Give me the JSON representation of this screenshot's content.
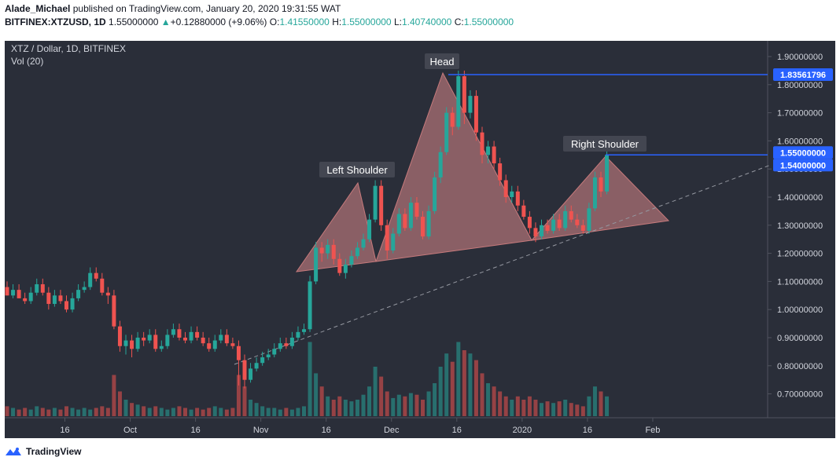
{
  "header": {
    "user": "Alade_Michael",
    "published": "published on TradingView.com, January 20, 2020 19:31:55 WAT",
    "symbol": "BITFINEX:XTZUSD, 1D",
    "close_value": "1.55000000",
    "change_value": "+0.12880000 (+9.06%)",
    "o_label": "O:",
    "o_value": "1.41550000",
    "h_label": "H:",
    "h_value": "1.55000000",
    "l_label": "L:",
    "l_value": "1.40740000",
    "c_label": "C:",
    "c_value": "1.55000000"
  },
  "legend": {
    "pair": "XTZ / Dollar, 1D, BITFINEX",
    "volume": "Vol (20)"
  },
  "footer": {
    "brand": "TradingView"
  },
  "colors": {
    "background": "#2a2e39",
    "up": "#26a69a",
    "down": "#ef5350",
    "pattern_fill": "#d8888a",
    "level_line": "#2962ff"
  },
  "chart_data": {
    "type": "candlestick",
    "y_range": [
      0.62,
      1.98
    ],
    "y_ticks": [
      "1.90000000",
      "1.80000000",
      "1.70000000",
      "1.60000000",
      "1.50000000",
      "1.40000000",
      "1.30000000",
      "1.20000000",
      "1.10000000",
      "1.00000000",
      "0.90000000",
      "0.80000000",
      "0.70000000"
    ],
    "x_ticks": [
      "16",
      "Oct",
      "16",
      "Nov",
      "16",
      "Dec",
      "16",
      "2020",
      "16",
      "Feb"
    ],
    "price_labels": [
      {
        "value": 1.83561796,
        "text": "1.83561796"
      },
      {
        "value": 1.55,
        "text": "1.55000000"
      },
      {
        "value": 1.54,
        "text": "1.54000000"
      }
    ],
    "annotations": [
      "Left Shoulder",
      "Head",
      "Right Shoulder"
    ],
    "candles": [
      [
        1.08,
        1.05,
        1.05
      ],
      [
        1.05,
        1.07,
        1.04
      ],
      [
        1.07,
        1.04,
        1.04
      ],
      [
        1.04,
        1.03,
        1.02
      ],
      [
        1.03,
        1.06,
        1.02
      ],
      [
        1.06,
        1.09,
        1.05
      ],
      [
        1.09,
        1.06,
        1.05
      ],
      [
        1.06,
        1.02,
        1.0
      ],
      [
        1.02,
        1.05,
        1.01
      ],
      [
        1.05,
        1.03,
        1.02
      ],
      [
        1.03,
        1.0,
        0.99
      ],
      [
        1.0,
        1.04,
        0.99
      ],
      [
        1.04,
        1.07,
        1.03
      ],
      [
        1.07,
        1.08,
        1.06
      ],
      [
        1.08,
        1.13,
        1.07
      ],
      [
        1.13,
        1.11,
        1.1
      ],
      [
        1.11,
        1.06,
        1.05
      ],
      [
        1.06,
        1.05,
        1.02
      ],
      [
        1.05,
        0.94,
        0.93
      ],
      [
        0.94,
        0.87,
        0.85
      ],
      [
        0.87,
        0.89,
        0.84
      ],
      [
        0.89,
        0.86,
        0.83
      ],
      [
        0.86,
        0.9,
        0.85
      ],
      [
        0.9,
        0.89,
        0.87
      ],
      [
        0.89,
        0.91,
        0.88
      ],
      [
        0.91,
        0.86,
        0.85
      ],
      [
        0.86,
        0.87,
        0.85
      ],
      [
        0.87,
        0.91,
        0.86
      ],
      [
        0.91,
        0.93,
        0.9
      ],
      [
        0.93,
        0.9,
        0.89
      ],
      [
        0.9,
        0.89,
        0.88
      ],
      [
        0.89,
        0.92,
        0.88
      ],
      [
        0.92,
        0.9,
        0.89
      ],
      [
        0.9,
        0.88,
        0.87
      ],
      [
        0.88,
        0.86,
        0.85
      ],
      [
        0.86,
        0.89,
        0.85
      ],
      [
        0.89,
        0.91,
        0.88
      ],
      [
        0.91,
        0.88,
        0.87
      ],
      [
        0.88,
        0.87,
        0.86
      ],
      [
        0.87,
        0.82,
        0.73
      ],
      [
        0.82,
        0.75,
        0.72
      ],
      [
        0.75,
        0.79,
        0.74
      ],
      [
        0.79,
        0.81,
        0.78
      ],
      [
        0.81,
        0.83,
        0.8
      ],
      [
        0.83,
        0.84,
        0.82
      ],
      [
        0.84,
        0.86,
        0.83
      ],
      [
        0.86,
        0.88,
        0.85
      ],
      [
        0.88,
        0.87,
        0.86
      ],
      [
        0.87,
        0.9,
        0.86
      ],
      [
        0.9,
        0.92,
        0.89
      ],
      [
        0.92,
        0.93,
        0.91
      ],
      [
        0.93,
        1.1,
        0.92
      ],
      [
        1.1,
        1.22,
        1.09
      ],
      [
        1.22,
        1.2,
        1.17
      ],
      [
        1.2,
        1.23,
        1.18
      ],
      [
        1.23,
        1.18,
        1.16
      ],
      [
        1.18,
        1.13,
        1.12
      ],
      [
        1.13,
        1.16,
        1.11
      ],
      [
        1.16,
        1.19,
        1.15
      ],
      [
        1.19,
        1.22,
        1.18
      ],
      [
        1.22,
        1.25,
        1.21
      ],
      [
        1.25,
        1.32,
        1.24
      ],
      [
        1.32,
        1.44,
        1.31
      ],
      [
        1.44,
        1.3,
        1.28
      ],
      [
        1.3,
        1.21,
        1.18
      ],
      [
        1.21,
        1.27,
        1.2
      ],
      [
        1.27,
        1.34,
        1.26
      ],
      [
        1.34,
        1.29,
        1.28
      ],
      [
        1.29,
        1.38,
        1.28
      ],
      [
        1.38,
        1.33,
        1.32
      ],
      [
        1.33,
        1.26,
        1.25
      ],
      [
        1.26,
        1.35,
        1.25
      ],
      [
        1.35,
        1.47,
        1.34
      ],
      [
        1.47,
        1.56,
        1.45
      ],
      [
        1.56,
        1.7,
        1.55
      ],
      [
        1.7,
        1.65,
        1.62
      ],
      [
        1.65,
        1.83,
        1.64
      ],
      [
        1.83,
        1.7,
        1.66
      ],
      [
        1.7,
        1.76,
        1.68
      ],
      [
        1.76,
        1.63,
        1.6
      ],
      [
        1.63,
        1.55,
        1.52
      ],
      [
        1.55,
        1.58,
        1.52
      ],
      [
        1.58,
        1.52,
        1.5
      ],
      [
        1.52,
        1.46,
        1.44
      ],
      [
        1.46,
        1.4,
        1.38
      ],
      [
        1.4,
        1.42,
        1.38
      ],
      [
        1.42,
        1.37,
        1.35
      ],
      [
        1.37,
        1.33,
        1.32
      ],
      [
        1.33,
        1.29,
        1.27
      ],
      [
        1.29,
        1.26,
        1.24
      ],
      [
        1.26,
        1.3,
        1.25
      ],
      [
        1.3,
        1.28,
        1.27
      ],
      [
        1.28,
        1.32,
        1.27
      ],
      [
        1.32,
        1.29,
        1.28
      ],
      [
        1.29,
        1.35,
        1.28
      ],
      [
        1.35,
        1.32,
        1.31
      ],
      [
        1.32,
        1.3,
        1.29
      ],
      [
        1.3,
        1.28,
        1.27
      ],
      [
        1.28,
        1.36,
        1.27
      ],
      [
        1.36,
        1.47,
        1.35
      ],
      [
        1.47,
        1.42,
        1.4
      ],
      [
        1.42,
        1.55,
        1.41
      ]
    ],
    "volumes": [
      0.06,
      0.05,
      0.04,
      0.05,
      0.04,
      0.06,
      0.05,
      0.04,
      0.05,
      0.04,
      0.06,
      0.05,
      0.04,
      0.05,
      0.04,
      0.05,
      0.06,
      0.05,
      0.25,
      0.15,
      0.1,
      0.08,
      0.07,
      0.06,
      0.05,
      0.06,
      0.05,
      0.04,
      0.05,
      0.06,
      0.05,
      0.04,
      0.05,
      0.04,
      0.05,
      0.06,
      0.05,
      0.04,
      0.05,
      0.25,
      0.18,
      0.1,
      0.08,
      0.06,
      0.05,
      0.05,
      0.04,
      0.05,
      0.04,
      0.05,
      0.06,
      0.45,
      0.26,
      0.18,
      0.12,
      0.1,
      0.12,
      0.1,
      0.09,
      0.1,
      0.13,
      0.18,
      0.3,
      0.24,
      0.15,
      0.11,
      0.13,
      0.12,
      0.14,
      0.13,
      0.1,
      0.15,
      0.2,
      0.3,
      0.38,
      0.33,
      0.45,
      0.4,
      0.38,
      0.34,
      0.26,
      0.2,
      0.18,
      0.15,
      0.12,
      0.1,
      0.12,
      0.1,
      0.12,
      0.1,
      0.08,
      0.09,
      0.08,
      0.09,
      0.1,
      0.08,
      0.07,
      0.06,
      0.12,
      0.18,
      0.15,
      0.12
    ]
  }
}
